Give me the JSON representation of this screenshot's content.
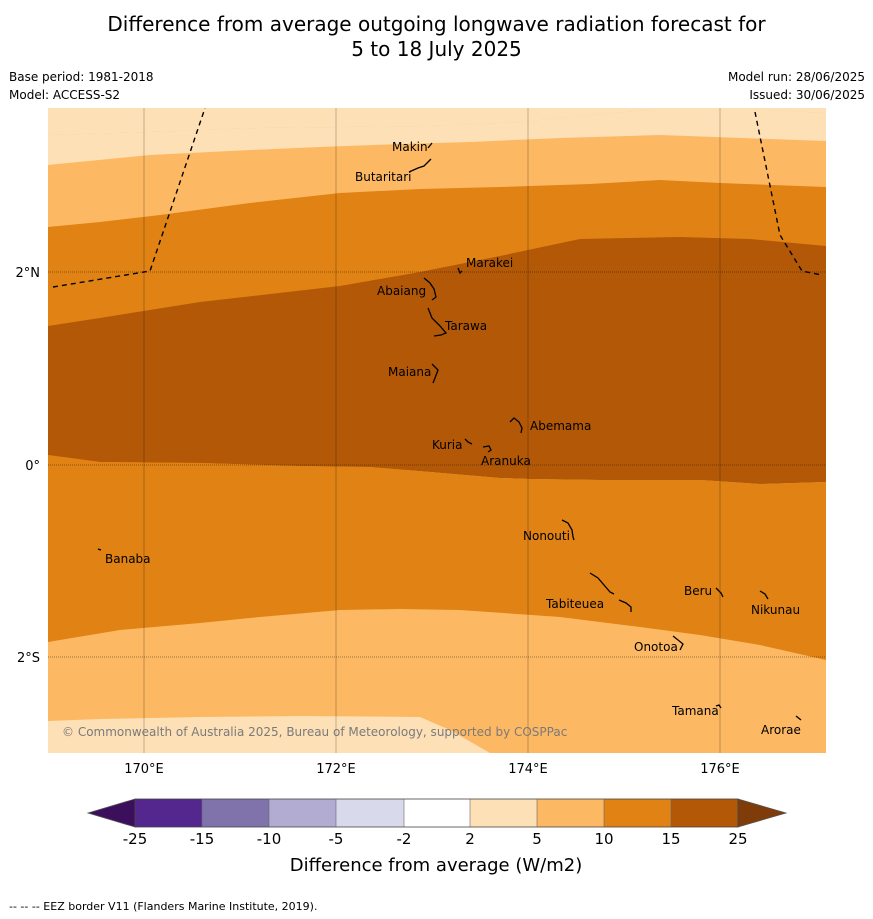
{
  "title": {
    "line1": "Difference from average outgoing longwave radiation forecast for",
    "line2": "5 to 18 July 2025"
  },
  "meta": {
    "base_period": "Base period: 1981-2018",
    "model": "Model: ACCESS-S2",
    "model_run": "Model run: 28/06/2025",
    "issued": "Issued: 30/06/2025"
  },
  "map": {
    "lat_labels": [
      "2°N",
      "0°",
      "2°S"
    ],
    "lon_labels": [
      "170°E",
      "172°E",
      "174°E",
      "176°E"
    ],
    "copyright": "© Commonwealth of Australia 2025, Bureau of Meteorology, supported by COSPPac",
    "places": [
      "Makin",
      "Butaritari",
      "Marakei",
      "Abaiang",
      "Tarawa",
      "Maiana",
      "Abemama",
      "Kuria",
      "Aranuka",
      "Nonouti",
      "Banaba",
      "Beru",
      "Nikunau",
      "Tabiteuea",
      "Onotoa",
      "Tamana",
      "Arorae"
    ]
  },
  "colorbar": {
    "ticks": [
      "-25",
      "-15",
      "-10",
      "-5",
      "-2",
      "2",
      "5",
      "10",
      "15",
      "25"
    ],
    "colors": [
      "#3b0f5c",
      "#54278f",
      "#8073ac",
      "#b2abd2",
      "#d8daeb",
      "#ffffff",
      "#fee0b6",
      "#fdb863",
      "#e08214",
      "#b35806",
      "#7f3b08"
    ],
    "label": "Difference from average (W/m2)"
  },
  "footnote": "--  --  -- EEZ border V11 (Flanders Marine Institute, 2019)."
}
